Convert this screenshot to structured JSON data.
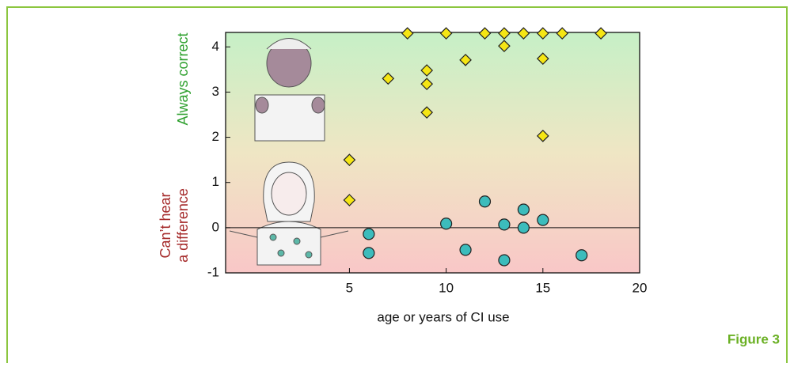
{
  "chart_data": {
    "type": "scatter",
    "x_label": "age or years of CI use",
    "y_label_top": "Always correct",
    "y_label_bottom": [
      "Can’t hear",
      "a difference"
    ],
    "figure_label": "Figure 3",
    "xlim": [
      -1.4,
      20
    ],
    "xticks": [
      5,
      10,
      15,
      20
    ],
    "ylim": [
      -1,
      4.32
    ],
    "yticks": [
      -1,
      0,
      1,
      2,
      3,
      4
    ],
    "hline": 0,
    "series": [
      {
        "marker": "diamond",
        "color": "#f5e614",
        "x": [
          8,
          10,
          12,
          13,
          14,
          15,
          16,
          18,
          13,
          11,
          15,
          7,
          9,
          9,
          9,
          15,
          5,
          5
        ],
        "values": [
          4.3,
          4.3,
          4.3,
          4.3,
          4.3,
          4.3,
          4.3,
          4.3,
          4.02,
          3.71,
          3.74,
          3.3,
          3.48,
          3.18,
          2.55,
          2.03,
          1.5,
          0.61
        ]
      },
      {
        "marker": "circle",
        "color": "#3cbcbc",
        "x": [
          6,
          6,
          10,
          11,
          12,
          13,
          13,
          14,
          14,
          15,
          17
        ],
        "values": [
          -0.14,
          -0.56,
          0.09,
          -0.49,
          0.58,
          0.07,
          -0.72,
          0.4,
          0,
          0.17,
          -0.61
        ]
      }
    ]
  }
}
